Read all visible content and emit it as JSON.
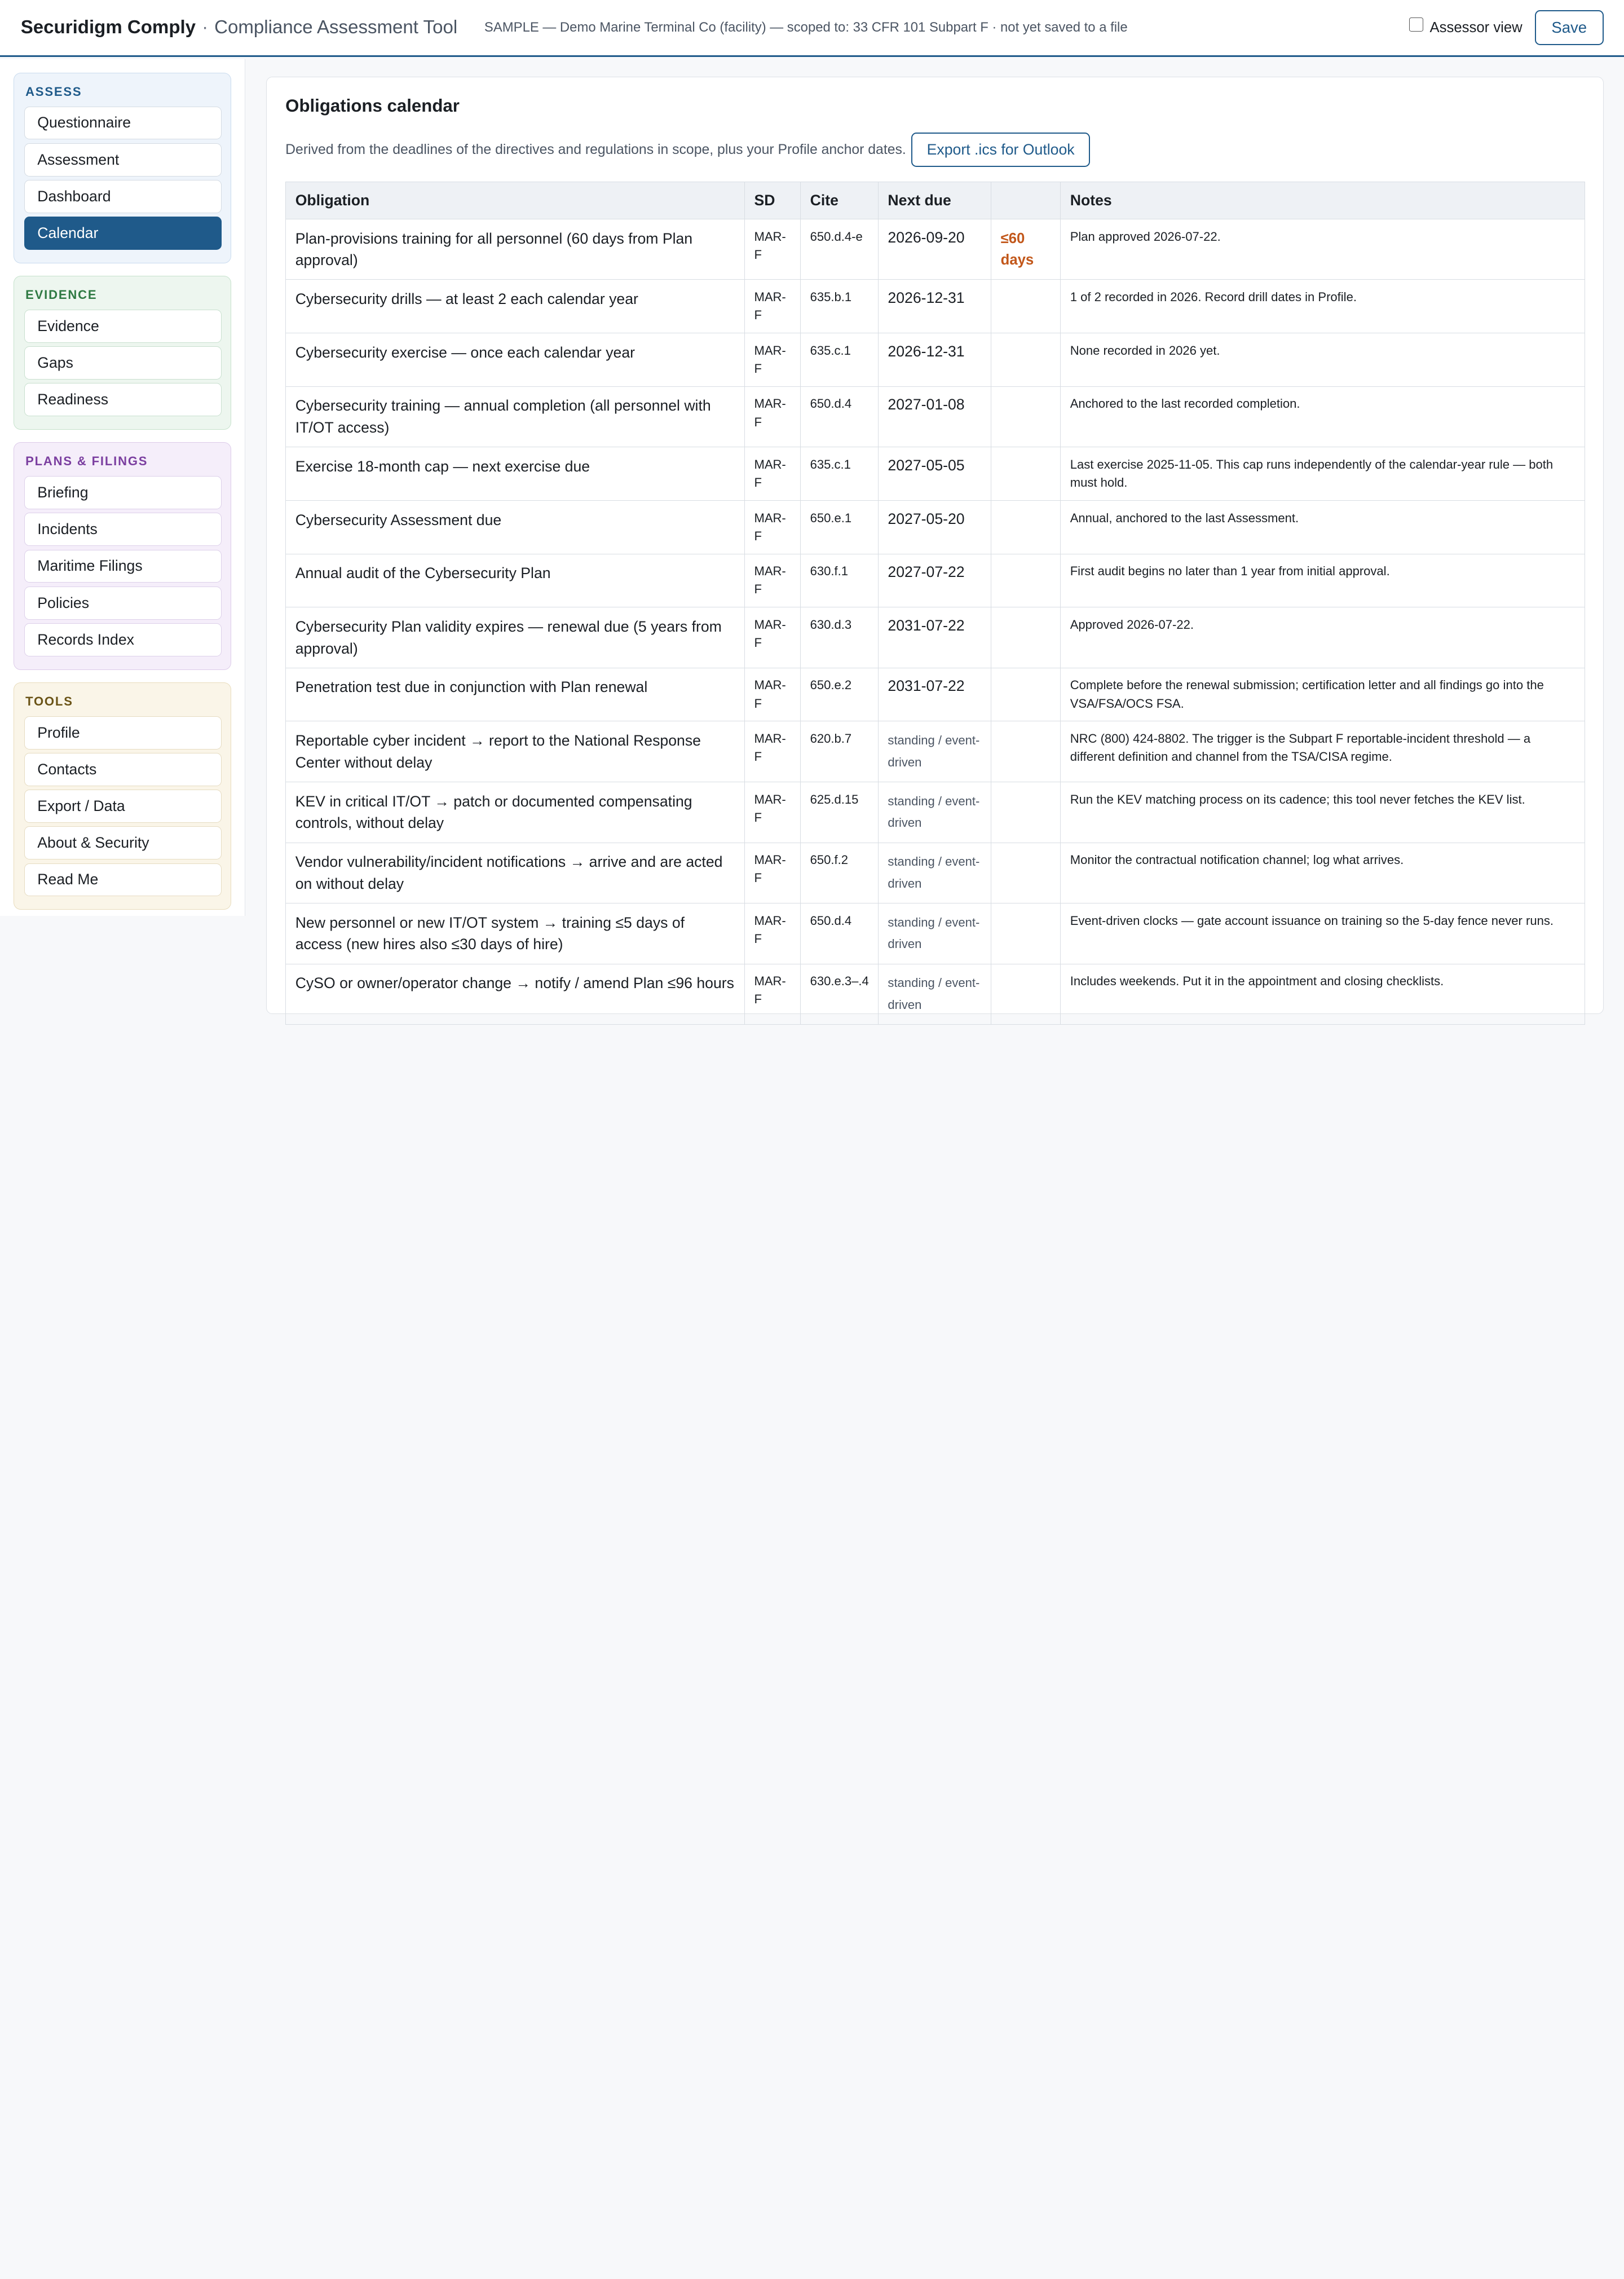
{
  "header": {
    "brand": "Securidigm Comply",
    "separator": "·",
    "subtitle": "Compliance Assessment Tool",
    "context": "SAMPLE — Demo Marine Terminal Co (facility) — scoped to: 33 CFR 101 Subpart F · not yet saved to a file",
    "assessor_label": "Assessor view",
    "save_label": "Save"
  },
  "sidebar": {
    "groups": [
      {
        "title": "ASSESS",
        "items": [
          "Questionnaire",
          "Assessment",
          "Dashboard",
          "Calendar"
        ]
      },
      {
        "title": "EVIDENCE",
        "items": [
          "Evidence",
          "Gaps",
          "Readiness"
        ]
      },
      {
        "title": "PLANS & FILINGS",
        "items": [
          "Briefing",
          "Incidents",
          "Maritime Filings",
          "Policies",
          "Records Index"
        ]
      },
      {
        "title": "TOOLS",
        "items": [
          "Profile",
          "Contacts",
          "Export / Data",
          "About & Security",
          "Read Me"
        ]
      }
    ],
    "active_item": "Calendar"
  },
  "main": {
    "title": "Obligations calendar",
    "description": "Derived from the deadlines of the directives and regulations in scope, plus your Profile anchor dates.",
    "export_label": "Export .ics for Outlook",
    "columns": [
      "Obligation",
      "SD",
      "Cite",
      "Next due",
      "",
      "Notes"
    ],
    "rows": [
      {
        "obligation": "Plan-provisions training for all personnel (60 days from Plan approval)",
        "sd": "MAR-F",
        "cite": "650.d.4-e",
        "due": "2026-09-20",
        "flag": "≤60 days",
        "notes": "Plan approved 2026-07-22."
      },
      {
        "obligation": "Cybersecurity drills — at least 2 each calendar year",
        "sd": "MAR-F",
        "cite": "635.b.1",
        "due": "2026-12-31",
        "flag": "",
        "notes": "1 of 2 recorded in 2026. Record drill dates in Profile."
      },
      {
        "obligation": "Cybersecurity exercise — once each calendar year",
        "sd": "MAR-F",
        "cite": "635.c.1",
        "due": "2026-12-31",
        "flag": "",
        "notes": "None recorded in 2026 yet."
      },
      {
        "obligation": "Cybersecurity training — annual completion (all personnel with IT/OT access)",
        "sd": "MAR-F",
        "cite": "650.d.4",
        "due": "2027-01-08",
        "flag": "",
        "notes": "Anchored to the last recorded completion."
      },
      {
        "obligation": "Exercise 18-month cap — next exercise due",
        "sd": "MAR-F",
        "cite": "635.c.1",
        "due": "2027-05-05",
        "flag": "",
        "notes": "Last exercise 2025-11-05. This cap runs independently of the calendar-year rule — both must hold."
      },
      {
        "obligation": "Cybersecurity Assessment due",
        "sd": "MAR-F",
        "cite": "650.e.1",
        "due": "2027-05-20",
        "flag": "",
        "notes": "Annual, anchored to the last Assessment."
      },
      {
        "obligation": "Annual audit of the Cybersecurity Plan",
        "sd": "MAR-F",
        "cite": "630.f.1",
        "due": "2027-07-22",
        "flag": "",
        "notes": "First audit begins no later than 1 year from initial approval."
      },
      {
        "obligation": "Cybersecurity Plan validity expires — renewal due (5 years from approval)",
        "sd": "MAR-F",
        "cite": "630.d.3",
        "due": "2031-07-22",
        "flag": "",
        "notes": "Approved 2026-07-22."
      },
      {
        "obligation": "Penetration test due in conjunction with Plan renewal",
        "sd": "MAR-F",
        "cite": "650.e.2",
        "due": "2031-07-22",
        "flag": "",
        "notes": "Complete before the renewal submission; certification letter and all findings go into the VSA/FSA/OCS FSA."
      },
      {
        "obligation": "Reportable cyber incident → report to the National Response Center without delay",
        "sd": "MAR-F",
        "cite": "620.b.7",
        "due": "standing / event-driven",
        "flag": "",
        "notes": "NRC (800) 424-8802. The trigger is the Subpart F reportable-incident threshold — a different definition and channel from the TSA/CISA regime."
      },
      {
        "obligation": "KEV in critical IT/OT → patch or documented compensating controls, without delay",
        "sd": "MAR-F",
        "cite": "625.d.15",
        "due": "standing / event-driven",
        "flag": "",
        "notes": "Run the KEV matching process on its cadence; this tool never fetches the KEV list."
      },
      {
        "obligation": "Vendor vulnerability/incident notifications → arrive and are acted on without delay",
        "sd": "MAR-F",
        "cite": "650.f.2",
        "due": "standing / event-driven",
        "flag": "",
        "notes": "Monitor the contractual notification channel; log what arrives."
      },
      {
        "obligation": "New personnel or new IT/OT system → training ≤5 days of access (new hires also ≤30 days of hire)",
        "sd": "MAR-F",
        "cite": "650.d.4",
        "due": "standing / event-driven",
        "flag": "",
        "notes": "Event-driven clocks — gate account issuance on training so the 5-day fence never runs."
      },
      {
        "obligation": "CySO or owner/operator change → notify / amend Plan ≤96 hours",
        "sd": "MAR-F",
        "cite": "630.e.3–.4",
        "due": "standing / event-driven",
        "flag": "",
        "notes": "Includes weekends. Put it in the appointment and closing checklists."
      }
    ]
  }
}
